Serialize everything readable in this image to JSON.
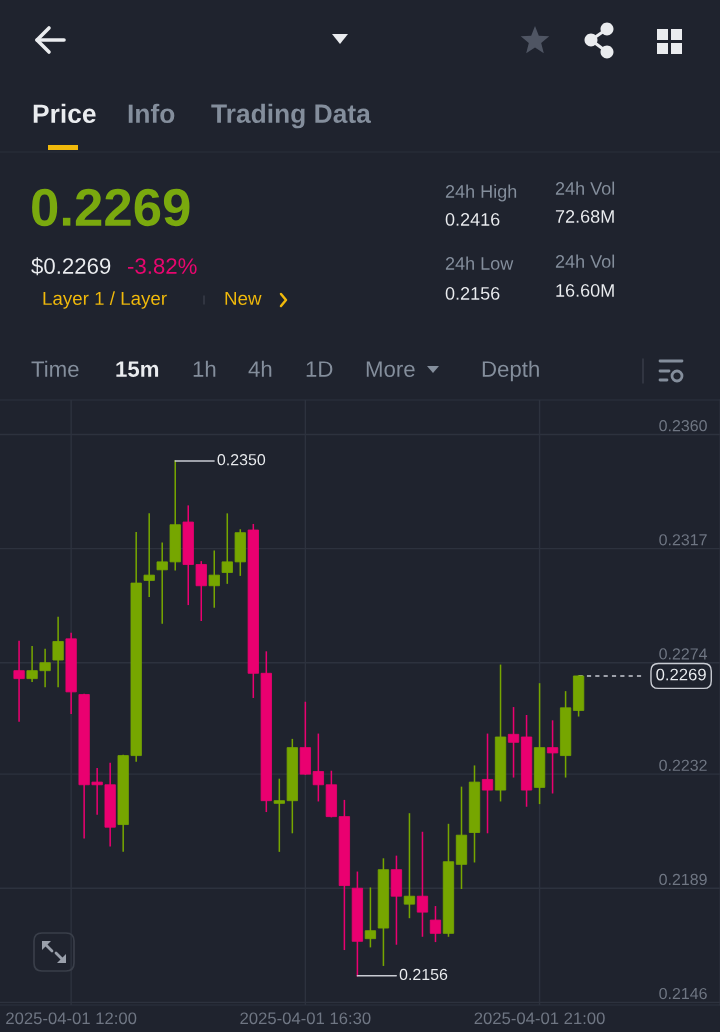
{
  "chart_data": {
    "type": "candlestick",
    "x": [
      "2025-04-01T11:00",
      "2025-04-01T11:15",
      "2025-04-01T11:30",
      "2025-04-01T11:45",
      "2025-04-01T12:00",
      "2025-04-01T12:15",
      "2025-04-01T12:30",
      "2025-04-01T12:45",
      "2025-04-01T13:00",
      "2025-04-01T13:15",
      "2025-04-01T13:30",
      "2025-04-01T13:45",
      "2025-04-01T14:00",
      "2025-04-01T14:15",
      "2025-04-01T14:30",
      "2025-04-01T14:45",
      "2025-04-01T15:00",
      "2025-04-01T15:15",
      "2025-04-01T15:30",
      "2025-04-01T15:45",
      "2025-04-01T16:00",
      "2025-04-01T16:15",
      "2025-04-01T16:30",
      "2025-04-01T16:45",
      "2025-04-01T17:00",
      "2025-04-01T17:15",
      "2025-04-01T17:30",
      "2025-04-01T17:45",
      "2025-04-01T18:00",
      "2025-04-01T18:15",
      "2025-04-01T18:30",
      "2025-04-01T18:45",
      "2025-04-01T19:00",
      "2025-04-01T19:15",
      "2025-04-01T19:30",
      "2025-04-01T19:45",
      "2025-04-01T20:00",
      "2025-04-01T20:15",
      "2025-04-01T20:30",
      "2025-04-01T20:45",
      "2025-04-01T21:00",
      "2025-04-01T21:15",
      "2025-04-01T21:30",
      "2025-04-01T21:45"
    ],
    "ohlc": [
      [
        0.2271,
        0.2282,
        0.2252,
        0.2268
      ],
      [
        0.2268,
        0.228,
        0.2267,
        0.2271
      ],
      [
        0.2271,
        0.2279,
        0.2265,
        0.2274
      ],
      [
        0.2275,
        0.2291,
        0.2265,
        0.2282
      ],
      [
        0.2283,
        0.2285,
        0.2255,
        0.2263
      ],
      [
        0.2262,
        0.2262,
        0.2208,
        0.2228
      ],
      [
        0.2229,
        0.2234,
        0.2217,
        0.2228
      ],
      [
        0.2228,
        0.2236,
        0.2205,
        0.2212
      ],
      [
        0.2213,
        0.2239,
        0.2203,
        0.2239
      ],
      [
        0.2239,
        0.2323,
        0.2237,
        0.2304
      ],
      [
        0.2305,
        0.233,
        0.2299,
        0.2307
      ],
      [
        0.2309,
        0.2319,
        0.2289,
        0.2312
      ],
      [
        0.2312,
        0.235,
        0.2309,
        0.2326
      ],
      [
        0.2327,
        0.2333,
        0.2296,
        0.2311
      ],
      [
        0.2311,
        0.2312,
        0.229,
        0.2303
      ],
      [
        0.2303,
        0.2316,
        0.2295,
        0.2307
      ],
      [
        0.2308,
        0.233,
        0.2304,
        0.2312
      ],
      [
        0.2312,
        0.2324,
        0.2307,
        0.2323
      ],
      [
        0.2324,
        0.2326,
        0.2261,
        0.227
      ],
      [
        0.227,
        0.2278,
        0.2218,
        0.2222
      ],
      [
        0.2221,
        0.223,
        0.2203,
        0.2222
      ],
      [
        0.2222,
        0.2245,
        0.221,
        0.2242
      ],
      [
        0.2242,
        0.2259,
        0.2232,
        0.2232
      ],
      [
        0.2233,
        0.2247,
        0.2222,
        0.2228
      ],
      [
        0.2228,
        0.2233,
        0.2216,
        0.2216
      ],
      [
        0.2216,
        0.2222,
        0.2166,
        0.219
      ],
      [
        0.2189,
        0.2195,
        0.2156,
        0.2169
      ],
      [
        0.217,
        0.2189,
        0.2167,
        0.2173
      ],
      [
        0.2174,
        0.22,
        0.216,
        0.2196
      ],
      [
        0.2196,
        0.2201,
        0.2168,
        0.2186
      ],
      [
        0.2183,
        0.2217,
        0.2178,
        0.2186
      ],
      [
        0.2186,
        0.221,
        0.2171,
        0.218
      ],
      [
        0.2177,
        0.2182,
        0.2169,
        0.2172
      ],
      [
        0.2172,
        0.2213,
        0.2171,
        0.2199
      ],
      [
        0.2198,
        0.2227,
        0.2189,
        0.2209
      ],
      [
        0.221,
        0.2235,
        0.2199,
        0.2229
      ],
      [
        0.223,
        0.2247,
        0.221,
        0.2226
      ],
      [
        0.2226,
        0.2273,
        0.2222,
        0.2246
      ],
      [
        0.2247,
        0.2257,
        0.2231,
        0.2244
      ],
      [
        0.2246,
        0.2254,
        0.222,
        0.2226
      ],
      [
        0.2227,
        0.2266,
        0.2221,
        0.2242
      ],
      [
        0.2242,
        0.2252,
        0.2225,
        0.224
      ],
      [
        0.2239,
        0.2263,
        0.2231,
        0.2257
      ],
      [
        0.2256,
        0.2269,
        0.2254,
        0.2269
      ]
    ],
    "colors": [
      "#ea0070",
      "#76a600",
      "#76a600",
      "#76a600",
      "#ea0070",
      "#ea0070",
      "#ea0070",
      "#ea0070",
      "#76a600",
      "#76a600",
      "#76a600",
      "#76a600",
      "#76a600",
      "#ea0070",
      "#ea0070",
      "#76a600",
      "#76a600",
      "#76a600",
      "#ea0070",
      "#ea0070",
      "#76a600",
      "#76a600",
      "#ea0070",
      "#ea0070",
      "#ea0070",
      "#ea0070",
      "#ea0070",
      "#76a600",
      "#76a600",
      "#ea0070",
      "#76a600",
      "#ea0070",
      "#ea0070",
      "#76a600",
      "#76a600",
      "#76a600",
      "#ea0070",
      "#76a600",
      "#ea0070",
      "#ea0070",
      "#76a600",
      "#ea0070",
      "#76a600",
      "#76a600"
    ],
    "xlim": [
      "2025-04-01T10:38",
      "2025-04-02T00:28"
    ],
    "xticks": [
      {
        "value": "2025-04-01T12:00",
        "label": "2025-04-01 12:00"
      },
      {
        "value": "2025-04-01T16:30",
        "label": "2025-04-01 16:30"
      },
      {
        "value": "2025-04-01T21:00",
        "label": "2025-04-01 21:00"
      }
    ],
    "ylim": [
      0.2145,
      0.2373
    ],
    "yticks": [
      {
        "value": 0.236,
        "label": "0.2360"
      },
      0.2317,
      0.2274,
      0.2232,
      0.2189,
      0.2146
    ],
    "grid": true,
    "ref_lines": [
      {
        "axis": "y",
        "value": 0.2269,
        "label": "0.2269",
        "color": "#c9ccd3",
        "line_style": "dashed"
      }
    ],
    "annotations": [
      {
        "text": "0.2350",
        "x": "2025-04-01T14:00",
        "y": 0.235
      },
      {
        "text": "0.2156",
        "x": "2025-04-01T17:30",
        "y": 0.2156
      },
      "Price",
      "Info",
      "Trading Data",
      "0.2269",
      "$0.2269",
      "-3.82%",
      "Layer 1 / Layer",
      "New",
      "24h High",
      "0.2416",
      "24h Low",
      "0.2156",
      "24h Vol",
      "72.68M",
      "24h Vol",
      "16.60M",
      "Time",
      "15m",
      "1h",
      "4h",
      "1D",
      "More",
      "Depth"
    ]
  }
}
